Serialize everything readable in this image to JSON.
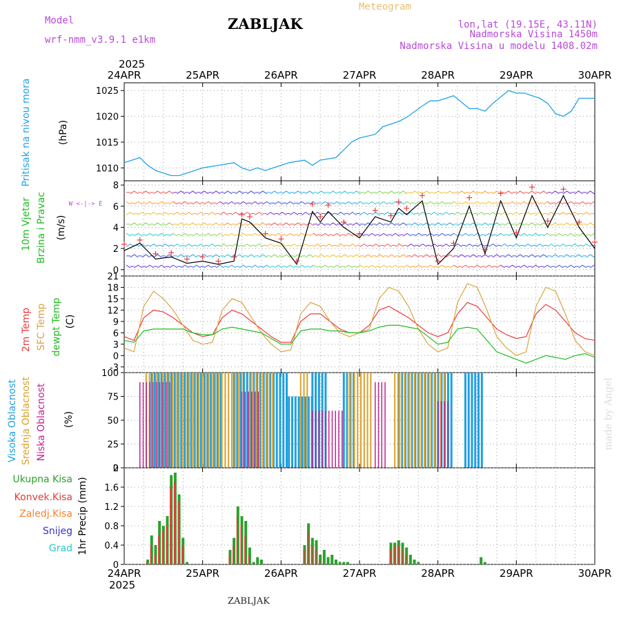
{
  "header": {
    "model_label": "Model",
    "model_name": "wrf-nmm_v3.9.1 e1km",
    "station": "ZABLJAK",
    "product": "Meteogram",
    "lonlat": "lon,lat (19.15E, 43.11N)",
    "elevation": "Nadmorska Visina 1450m",
    "model_elevation": "Nadmorska Visina u modelu 1408.02m"
  },
  "footer": {
    "station": "ZABLJAK",
    "credit": "made by Angel"
  },
  "time_axis": {
    "year": "2025",
    "dates": [
      "24APR",
      "25APR",
      "26APR",
      "27APR",
      "28APR",
      "29APR",
      "30APR"
    ]
  },
  "colors": {
    "pressure": "#1fa3e6",
    "temp2m": "#ee3b3b",
    "sfc_temp": "#d9a441",
    "dewpoint": "#22bb22",
    "high_cloud": "#1f9fe0",
    "mid_cloud": "#dba028",
    "low_cloud": "#c0238c",
    "total_precip": "#2ca02c",
    "convective": "#e23b3b",
    "zaledj": "#ff7f27",
    "snow": "#3333cc",
    "grad": "#22c7c7",
    "wind_label": "#22bb22",
    "wind_dir": "#b84ad6"
  },
  "chart_data": [
    {
      "type": "line",
      "panel": "pressure",
      "ylabel": [
        "Pritisak na nivou mora",
        "(hPa)"
      ],
      "yticks": [
        1010,
        1015,
        1020,
        1025
      ],
      "ylim": [
        1007.5,
        1026.5
      ],
      "grid": true,
      "x_days": [
        0,
        0.1,
        0.2,
        0.3,
        0.4,
        0.5,
        0.6,
        0.7,
        0.8,
        0.9,
        1.0,
        1.2,
        1.4,
        1.5,
        1.6,
        1.7,
        1.8,
        1.9,
        2.0,
        2.1,
        2.3,
        2.4,
        2.5,
        2.7,
        2.8,
        2.9,
        3.0,
        3.2,
        3.3,
        3.5,
        3.6,
        3.8,
        3.9,
        4.0,
        4.2,
        4.4,
        4.5,
        4.6,
        4.7,
        4.9,
        5.0,
        5.1,
        5.2,
        5.3,
        5.4,
        5.5,
        5.6,
        5.7,
        5.8,
        5.9,
        6.0
      ],
      "values": [
        1011,
        1011.5,
        1012,
        1010.5,
        1009.5,
        1009,
        1008.5,
        1008.5,
        1009,
        1009.5,
        1010,
        1010.5,
        1011,
        1010,
        1009.5,
        1010,
        1009.5,
        1010,
        1010.5,
        1011,
        1011.5,
        1010.5,
        1011.5,
        1012,
        1013.5,
        1015,
        1015.8,
        1016.5,
        1018,
        1019,
        1019.8,
        1022,
        1023,
        1023,
        1024,
        1021.5,
        1021.5,
        1021,
        1022.5,
        1025,
        1024.5,
        1024.5,
        1024,
        1023.5,
        1022.5,
        1020.5,
        1020,
        1021,
        1023.5,
        1023.5,
        1023.5
      ]
    },
    {
      "type": "line",
      "panel": "wind",
      "ylabel": [
        "10m Vjetar",
        "Brzina i Pravac",
        "(m/s)"
      ],
      "direction_legend": "W <-|-> E",
      "yticks": [
        0,
        2,
        4,
        6,
        8
      ],
      "ylim": [
        -0.6,
        8.4
      ],
      "grid": true,
      "series": [
        {
          "name": "brzina",
          "x_days": [
            0,
            0.2,
            0.4,
            0.6,
            0.8,
            1.0,
            1.2,
            1.4,
            1.5,
            1.6,
            1.8,
            2.0,
            2.2,
            2.4,
            2.5,
            2.6,
            2.8,
            3.0,
            3.2,
            3.4,
            3.5,
            3.6,
            3.8,
            4.0,
            4.2,
            4.4,
            4.6,
            4.8,
            5.0,
            5.2,
            5.4,
            5.6,
            5.8,
            6.0
          ],
          "values": [
            1.8,
            2.5,
            1.0,
            1.2,
            0.6,
            0.8,
            0.5,
            0.8,
            4.8,
            4.5,
            3.0,
            2.5,
            0.5,
            5.5,
            4.5,
            5.5,
            4.0,
            3.0,
            5.0,
            4.5,
            5.8,
            5.2,
            6.5,
            0.5,
            2.0,
            6.0,
            1.5,
            6.5,
            3.0,
            7.0,
            4.0,
            7.0,
            4.0,
            2.0
          ]
        },
        {
          "name": "udari",
          "x_days": [
            0,
            0.2,
            0.4,
            0.6,
            0.8,
            1.0,
            1.2,
            1.4,
            1.5,
            1.6,
            1.8,
            2.0,
            2.2,
            2.4,
            2.5,
            2.6,
            2.8,
            3.0,
            3.2,
            3.4,
            3.5,
            3.6,
            3.8,
            4.0,
            4.2,
            4.4,
            4.6,
            4.8,
            5.0,
            5.2,
            5.4,
            5.6,
            5.8,
            6.0
          ],
          "values": [
            2.4,
            2.8,
            1.5,
            1.6,
            1.0,
            1.2,
            0.8,
            1.2,
            5.2,
            5.0,
            3.4,
            2.9,
            0.8,
            6.2,
            5.0,
            6.1,
            4.5,
            3.4,
            5.6,
            5.1,
            6.4,
            5.8,
            7.0,
            0.8,
            2.5,
            6.8,
            1.9,
            7.2,
            3.5,
            7.8,
            4.6,
            7.6,
            4.5,
            2.6
          ]
        }
      ]
    },
    {
      "type": "line",
      "panel": "temperature",
      "ylabel": [
        "2m Temp",
        "SFC Temp",
        "dewpt Temp",
        "(C)"
      ],
      "yticks": [
        -3,
        0,
        3,
        6,
        9,
        12,
        15,
        18,
        21
      ],
      "ylim": [
        -4.5,
        21
      ],
      "grid": true,
      "x_days": [
        0,
        0.125,
        0.25,
        0.375,
        0.5,
        0.625,
        0.75,
        0.875,
        1.0,
        1.125,
        1.25,
        1.375,
        1.5,
        1.625,
        1.75,
        1.875,
        2.0,
        2.125,
        2.25,
        2.375,
        2.5,
        2.625,
        2.75,
        2.875,
        3.0,
        3.125,
        3.25,
        3.375,
        3.5,
        3.625,
        3.75,
        3.875,
        4.0,
        4.125,
        4.25,
        4.375,
        4.5,
        4.625,
        4.75,
        4.875,
        5.0,
        5.125,
        5.25,
        5.375,
        5.5,
        5.625,
        5.75,
        5.875,
        6.0
      ],
      "series": [
        {
          "name": "2m Temp",
          "values": [
            5,
            4,
            10,
            12,
            11.5,
            10,
            8,
            6,
            5,
            5.5,
            10,
            12,
            11,
            9,
            7,
            5,
            3.5,
            3.5,
            9,
            11,
            11,
            9,
            7,
            6,
            6,
            8,
            12,
            13,
            11.5,
            10,
            8,
            6,
            5,
            6,
            11,
            14,
            13,
            10,
            7,
            5.5,
            4.5,
            5,
            11,
            13.5,
            12,
            9,
            6,
            4.5,
            4
          ]
        },
        {
          "name": "SFC Temp",
          "values": [
            2,
            1,
            13,
            17,
            15,
            12,
            8,
            4,
            3,
            3.5,
            12,
            15,
            14,
            10,
            6,
            3,
            1,
            1.5,
            11,
            14,
            13,
            9,
            6,
            5,
            6,
            7,
            15,
            18,
            17,
            13,
            7,
            3,
            1,
            2,
            14,
            19,
            18,
            12,
            5,
            2,
            0,
            1,
            13,
            18,
            17,
            11,
            4,
            1,
            0
          ]
        },
        {
          "name": "dewpt Temp",
          "values": [
            4,
            3.5,
            6.5,
            7,
            7,
            7,
            7,
            6,
            5.5,
            5.5,
            7,
            7.5,
            7,
            6.5,
            6,
            4.5,
            3,
            3,
            6.5,
            7,
            7,
            6.5,
            6.5,
            6,
            6,
            6.5,
            7.5,
            8,
            8,
            7.5,
            7,
            5,
            3,
            3.5,
            7,
            7.5,
            7,
            4,
            1,
            0,
            -1,
            -2,
            -1,
            0,
            -0.5,
            -1,
            0,
            0.5,
            -0.5
          ]
        }
      ]
    },
    {
      "type": "bar",
      "panel": "clouds",
      "ylabel": [
        "Visoka Oblacnost",
        "Srednja Oblacnost",
        "Niska Oblacnost",
        "(%)"
      ],
      "yticks": [
        0,
        25,
        50,
        75,
        100
      ],
      "ylim": [
        0,
        100
      ],
      "grid": true,
      "series": [
        {
          "name": "Visoka Oblacnost",
          "ranges": [
            [
              0.35,
              1.25,
              100
            ],
            [
              1.4,
              2.1,
              100
            ],
            [
              2.1,
              2.4,
              75
            ],
            [
              2.4,
              2.6,
              100
            ],
            [
              2.8,
              2.95,
              100
            ],
            [
              3.5,
              4.2,
              100
            ],
            [
              4.35,
              4.6,
              100
            ]
          ]
        },
        {
          "name": "Srednja Oblacnost",
          "ranges": [
            [
              0.28,
              1.5,
              100
            ],
            [
              1.6,
              1.9,
              100
            ],
            [
              2.25,
              2.35,
              100
            ],
            [
              2.85,
              3.15,
              100
            ],
            [
              3.45,
              4.1,
              100
            ]
          ]
        },
        {
          "name": "Niska Oblacnost",
          "ranges": [
            [
              0.2,
              0.6,
              90
            ],
            [
              1.5,
              1.75,
              80
            ],
            [
              2.4,
              2.8,
              60
            ],
            [
              3.2,
              3.35,
              90
            ],
            [
              4.0,
              4.15,
              70
            ]
          ]
        }
      ]
    },
    {
      "type": "bar",
      "panel": "precipitation",
      "ylabel": [
        "1hr Precip (mm)"
      ],
      "legend": [
        "Ukupna Kisa",
        "Konvek.Kisa",
        "Zaledj.Kisa",
        "Snijeg",
        "Grad"
      ],
      "yticks": [
        0,
        0.4,
        0.8,
        1.2,
        1.6,
        2
      ],
      "ylim": [
        0,
        2
      ],
      "grid": true,
      "series": [
        {
          "name": "Ukupna Kisa",
          "x_days": [
            0.3,
            0.35,
            0.4,
            0.45,
            0.5,
            0.55,
            0.6,
            0.65,
            0.7,
            0.75,
            0.8,
            1.35,
            1.4,
            1.45,
            1.5,
            1.55,
            1.6,
            1.65,
            1.7,
            1.75,
            2.3,
            2.35,
            2.4,
            2.45,
            2.5,
            2.55,
            2.6,
            2.65,
            2.7,
            2.75,
            2.8,
            2.85,
            3.4,
            3.45,
            3.5,
            3.55,
            3.6,
            3.65,
            3.7,
            3.75,
            4.55,
            4.6
          ],
          "values": [
            0.1,
            0.6,
            0.4,
            0.9,
            0.8,
            1.0,
            1.85,
            1.9,
            1.45,
            0.55,
            0.05,
            0.3,
            0.55,
            1.2,
            1.0,
            0.9,
            0.35,
            0.05,
            0.15,
            0.1,
            0.4,
            0.85,
            0.55,
            0.5,
            0.2,
            0.3,
            0.15,
            0.2,
            0.1,
            0.05,
            0.05,
            0.05,
            0.45,
            0.45,
            0.5,
            0.45,
            0.35,
            0.2,
            0.1,
            0.05,
            0.15,
            0.05
          ]
        },
        {
          "name": "Konvek.Kisa",
          "x_days": [
            0.3,
            0.35,
            0.4,
            0.45,
            0.5,
            0.55,
            0.6,
            0.65,
            0.7,
            0.75,
            1.35,
            1.4,
            1.45,
            1.5,
            1.55,
            1.6,
            2.3,
            2.35,
            2.4,
            2.45,
            2.5,
            3.4,
            3.45,
            3.5,
            3.55,
            3.6
          ],
          "values": [
            0.05,
            0.4,
            0.2,
            0.6,
            0.7,
            0.8,
            1.6,
            1.7,
            1.3,
            0.4,
            0.2,
            0.4,
            1.0,
            0.8,
            0.6,
            0.2,
            0.3,
            0.7,
            0.4,
            0.3,
            0.1,
            0.3,
            0.4,
            0.4,
            0.3,
            0.2
          ]
        }
      ]
    }
  ]
}
